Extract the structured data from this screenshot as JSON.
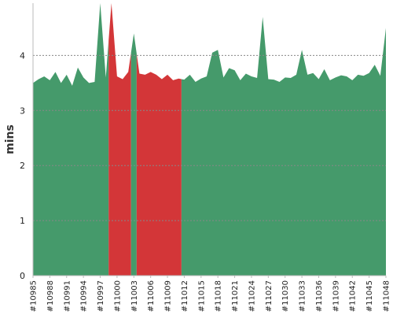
{
  "chart_data": {
    "type": "area",
    "ylabel": "mins",
    "ylim": [
      0,
      4.95
    ],
    "y_ticks": [
      0,
      1,
      2,
      3,
      4
    ],
    "grid": "horizontal dashed",
    "x_tick_labels": [
      "#10985",
      "#10988",
      "#10991",
      "#10994",
      "#10997",
      "#11000",
      "#11003",
      "#11006",
      "#11009",
      "#11012",
      "#11015",
      "#11018",
      "#11021",
      "#11024",
      "#11027",
      "#11030",
      "#11033",
      "#11036",
      "#11039",
      "#11042",
      "#11045",
      "#11048"
    ],
    "x": [
      10985,
      10986,
      10987,
      10988,
      10989,
      10990,
      10991,
      10992,
      10993,
      10994,
      10995,
      10996,
      10997,
      10998,
      10999,
      11000,
      11001,
      11002,
      11003,
      11004,
      11005,
      11006,
      11007,
      11008,
      11009,
      11010,
      11011,
      11012,
      11013,
      11014,
      11015,
      11016,
      11017,
      11018,
      11019,
      11020,
      11021,
      11022,
      11023,
      11024,
      11025,
      11026,
      11027,
      11028,
      11029,
      11030,
      11031,
      11032,
      11033,
      11034,
      11035,
      11036,
      11037,
      11038,
      11039,
      11040,
      11041,
      11042,
      11043,
      11044,
      11045,
      11046,
      11047,
      11048
    ],
    "values": [
      3.5,
      3.57,
      3.62,
      3.55,
      3.7,
      3.5,
      3.65,
      3.45,
      3.78,
      3.6,
      3.5,
      3.52,
      4.95,
      3.6,
      4.95,
      3.62,
      3.57,
      3.7,
      4.4,
      3.67,
      3.65,
      3.7,
      3.65,
      3.57,
      3.65,
      3.55,
      3.58,
      3.56,
      3.65,
      3.52,
      3.58,
      3.62,
      4.05,
      4.1,
      3.6,
      3.77,
      3.73,
      3.55,
      3.67,
      3.62,
      3.59,
      4.7,
      3.57,
      3.56,
      3.52,
      3.6,
      3.59,
      3.65,
      4.1,
      3.65,
      3.68,
      3.57,
      3.75,
      3.55,
      3.6,
      3.64,
      3.62,
      3.55,
      3.65,
      3.63,
      3.68,
      3.83,
      3.63,
      4.5
    ],
    "status": [
      "ok",
      "ok",
      "ok",
      "ok",
      "ok",
      "ok",
      "ok",
      "ok",
      "ok",
      "ok",
      "ok",
      "ok",
      "ok",
      "ok",
      "fail",
      "fail",
      "fail",
      "fail",
      "ok",
      "fail",
      "fail",
      "fail",
      "fail",
      "fail",
      "fail",
      "fail",
      "fail",
      "ok",
      "ok",
      "ok",
      "ok",
      "ok",
      "ok",
      "ok",
      "ok",
      "ok",
      "ok",
      "ok",
      "ok",
      "ok",
      "ok",
      "ok",
      "ok",
      "ok",
      "ok",
      "ok",
      "ok",
      "ok",
      "ok",
      "ok",
      "ok",
      "ok",
      "ok",
      "ok",
      "ok",
      "ok",
      "ok",
      "ok",
      "ok",
      "ok",
      "ok",
      "ok",
      "ok",
      "ok"
    ],
    "colors": {
      "ok": "#459a6b",
      "fail": "#d33638",
      "grid": "#888888",
      "axis": "#bbbbbb"
    }
  }
}
